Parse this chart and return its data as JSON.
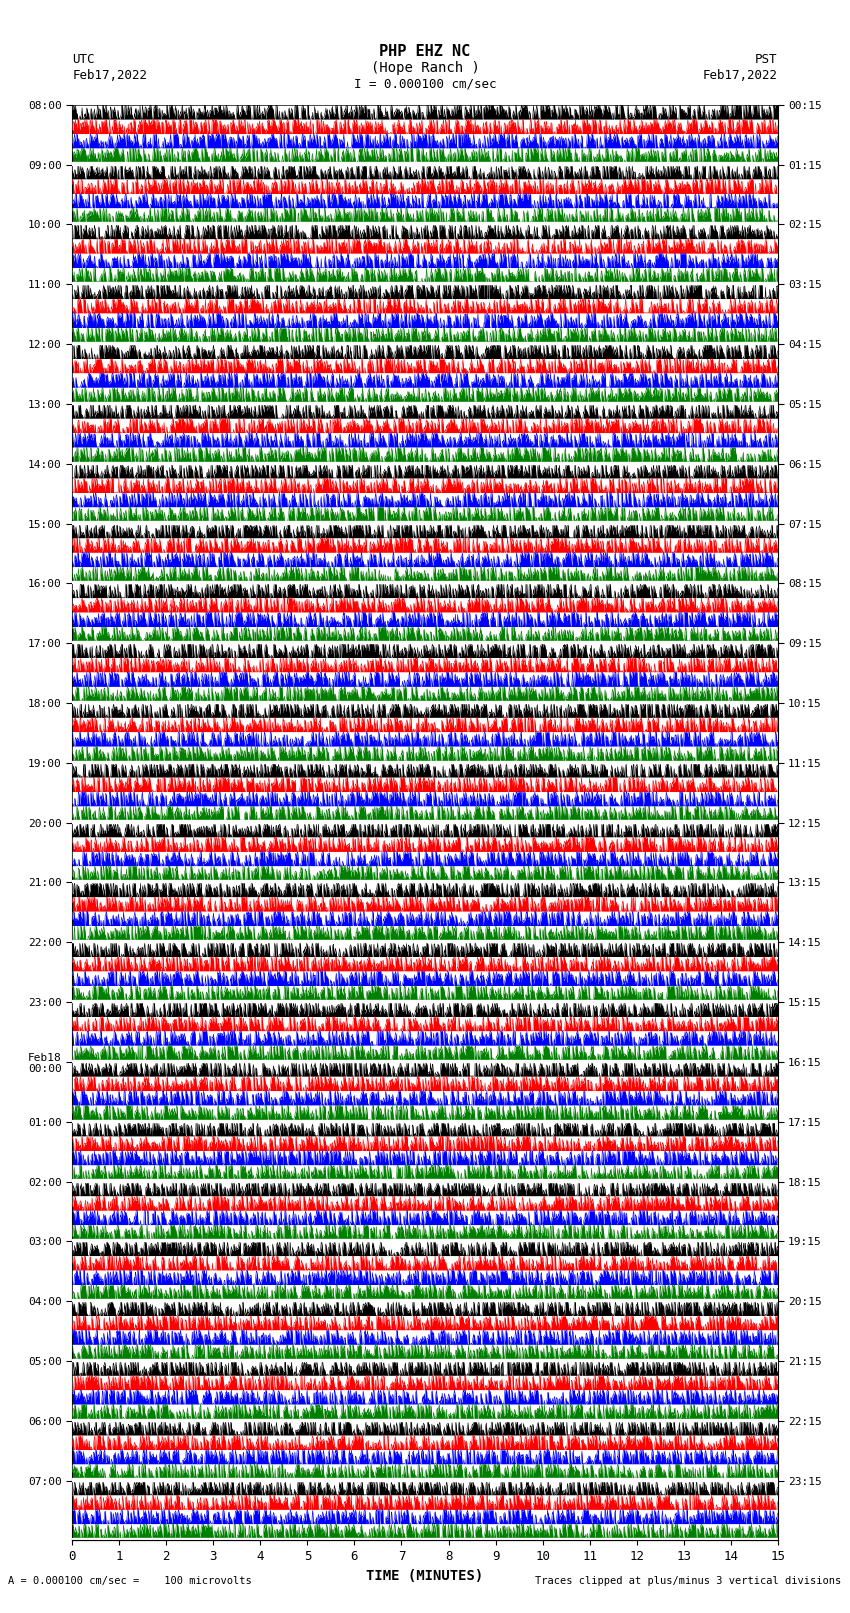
{
  "title_line1": "PHP EHZ NC",
  "title_line2": "(Hope Ranch )",
  "title_line3": "I = 0.000100 cm/sec",
  "left_label_line1": "UTC",
  "left_label_line2": "Feb17,2022",
  "right_label_line1": "PST",
  "right_label_line2": "Feb17,2022",
  "xlabel": "TIME (MINUTES)",
  "bottom_left_note": "A = 0.000100 cm/sec =    100 microvolts",
  "bottom_right_note": "Traces clipped at plus/minus 3 vertical divisions",
  "utc_times": [
    "08:00",
    "09:00",
    "10:00",
    "11:00",
    "12:00",
    "13:00",
    "14:00",
    "15:00",
    "16:00",
    "17:00",
    "18:00",
    "19:00",
    "20:00",
    "21:00",
    "22:00",
    "23:00",
    "Feb18\n00:00",
    "01:00",
    "02:00",
    "03:00",
    "04:00",
    "05:00",
    "06:00",
    "07:00"
  ],
  "pst_times": [
    "00:15",
    "01:15",
    "02:15",
    "03:15",
    "04:15",
    "05:15",
    "06:15",
    "07:15",
    "08:15",
    "09:15",
    "10:15",
    "11:15",
    "12:15",
    "13:15",
    "14:15",
    "15:15",
    "16:15",
    "17:15",
    "18:15",
    "19:15",
    "20:15",
    "21:15",
    "22:15",
    "23:15"
  ],
  "n_traces": 24,
  "n_points": 1500,
  "trace_colors": [
    "black",
    "red",
    "blue",
    "green"
  ],
  "background_color": "white",
  "figsize": [
    8.5,
    16.13
  ],
  "dpi": 100,
  "xmin": 0,
  "xmax": 15,
  "xticks": [
    0,
    1,
    2,
    3,
    4,
    5,
    6,
    7,
    8,
    9,
    10,
    11,
    12,
    13,
    14,
    15
  ]
}
